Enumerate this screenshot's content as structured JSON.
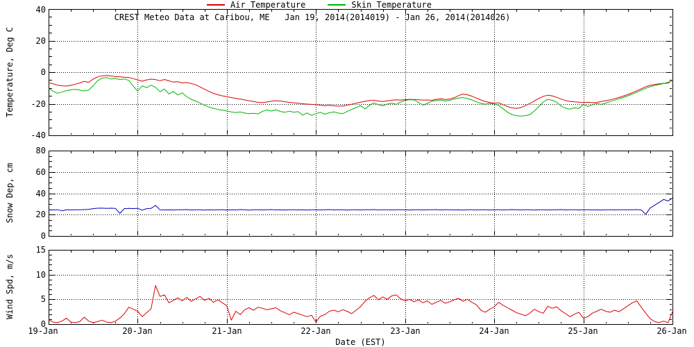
{
  "title": "CREST Meteo Data at Caribou, ME   Jan 19, 2014(2014019) - Jan 26, 2014(2014026)",
  "legend": {
    "air": "Air Temperature",
    "skin": "Skin Temperature"
  },
  "colors": {
    "air": "#dd0000",
    "skin": "#00b300",
    "snow": "#0000bb",
    "wind": "#dd0000",
    "frame": "#000000",
    "background": "#ffffff"
  },
  "xaxis": {
    "label": "Date (EST)",
    "tick_labels": [
      "19-Jan",
      "20-Jan",
      "21-Jan",
      "22-Jan",
      "23-Jan",
      "24-Jan",
      "25-Jan",
      "26-Jan"
    ],
    "xlim_days": [
      19,
      26
    ],
    "minor_tick_day_step": 0.25,
    "grid_days": [
      20,
      21,
      22,
      23,
      24,
      25
    ]
  },
  "chart_data": [
    {
      "type": "line",
      "panel": "temperature",
      "ylabel": "Temperature, Deg C",
      "ylim": [
        -40,
        40
      ],
      "ytick_labels": [
        "40",
        "20",
        "0",
        "-20",
        "-40"
      ],
      "ytick_values": [
        40,
        20,
        0,
        -20,
        -40
      ],
      "y_minor_step": 5,
      "grid_values": [
        20,
        0,
        -20
      ],
      "x_start": 19.0,
      "x_step": 0.05,
      "x_end": 26.0,
      "series": [
        {
          "name": "Air Temperature",
          "color_key": "air",
          "values": [
            -6.8,
            -7.3,
            -8.2,
            -8.6,
            -8.8,
            -8.3,
            -7.6,
            -6.8,
            -5.8,
            -6.4,
            -4.4,
            -3.0,
            -2.3,
            -2.1,
            -2.4,
            -2.8,
            -2.9,
            -3.2,
            -3.4,
            -4.1,
            -4.9,
            -5.7,
            -4.9,
            -4.4,
            -4.7,
            -5.4,
            -4.6,
            -5.5,
            -6.3,
            -6.0,
            -6.8,
            -6.5,
            -7.2,
            -8.0,
            -9.3,
            -10.8,
            -12.2,
            -13.4,
            -14.3,
            -15.0,
            -15.5,
            -16.1,
            -16.6,
            -17.0,
            -17.6,
            -18.1,
            -18.6,
            -19.1,
            -19.3,
            -18.9,
            -18.4,
            -18.1,
            -18.3,
            -18.7,
            -19.1,
            -19.4,
            -19.7,
            -20.0,
            -20.2,
            -20.4,
            -20.6,
            -20.9,
            -21.2,
            -21.0,
            -21.3,
            -21.5,
            -21.4,
            -20.9,
            -20.3,
            -19.6,
            -19.0,
            -18.4,
            -18.0,
            -17.8,
            -18.3,
            -18.6,
            -18.2,
            -17.8,
            -17.5,
            -17.7,
            -17.4,
            -17.2,
            -17.3,
            -17.5,
            -17.7,
            -17.6,
            -17.8,
            -17.2,
            -16.8,
            -17.3,
            -17.0,
            -16.2,
            -14.8,
            -13.9,
            -14.3,
            -15.2,
            -16.4,
            -17.6,
            -18.6,
            -19.2,
            -19.6,
            -19.4,
            -20.6,
            -21.8,
            -22.6,
            -22.9,
            -22.4,
            -21.2,
            -19.8,
            -18.2,
            -16.6,
            -15.3,
            -14.6,
            -15.0,
            -15.9,
            -17.0,
            -17.9,
            -18.5,
            -18.8,
            -19.0,
            -19.2,
            -19.0,
            -19.3,
            -19.1,
            -18.6,
            -18.1,
            -17.5,
            -16.8,
            -16.0,
            -15.1,
            -14.1,
            -13.0,
            -11.8,
            -10.5,
            -9.2,
            -8.3,
            -7.8,
            -7.4,
            -7.1,
            -6.9,
            -5.0
          ]
        },
        {
          "name": "Skin Temperature",
          "color_key": "skin",
          "values": [
            -10.4,
            -12.0,
            -13.3,
            -12.6,
            -11.6,
            -11.2,
            -10.9,
            -11.4,
            -11.9,
            -11.3,
            -8.6,
            -5.4,
            -3.8,
            -3.4,
            -4.3,
            -4.0,
            -4.6,
            -4.3,
            -5.2,
            -8.8,
            -12.0,
            -8.6,
            -9.8,
            -8.2,
            -9.6,
            -12.4,
            -10.7,
            -13.8,
            -12.2,
            -14.4,
            -13.1,
            -15.6,
            -17.2,
            -18.3,
            -19.5,
            -21.0,
            -22.1,
            -22.9,
            -23.6,
            -24.1,
            -24.6,
            -25.2,
            -25.6,
            -25.2,
            -25.9,
            -26.3,
            -26.0,
            -26.4,
            -24.8,
            -23.9,
            -24.6,
            -23.8,
            -24.9,
            -25.4,
            -24.7,
            -25.3,
            -25.0,
            -27.2,
            -25.8,
            -27.4,
            -26.2,
            -25.4,
            -26.6,
            -25.7,
            -25.2,
            -25.9,
            -26.3,
            -24.9,
            -23.6,
            -22.4,
            -21.2,
            -23.3,
            -21.0,
            -19.4,
            -20.6,
            -21.3,
            -20.2,
            -19.6,
            -20.4,
            -19.0,
            -17.9,
            -17.4,
            -17.6,
            -19.2,
            -20.9,
            -19.8,
            -18.4,
            -18.0,
            -17.6,
            -18.3,
            -17.8,
            -17.0,
            -16.4,
            -16.1,
            -16.7,
            -17.6,
            -18.8,
            -19.8,
            -20.3,
            -19.7,
            -20.2,
            -21.0,
            -23.2,
            -25.4,
            -26.8,
            -27.6,
            -27.8,
            -27.5,
            -26.9,
            -24.6,
            -21.8,
            -18.9,
            -17.2,
            -17.8,
            -19.0,
            -21.4,
            -22.8,
            -23.4,
            -22.6,
            -23.0,
            -20.4,
            -21.8,
            -20.6,
            -19.8,
            -20.4,
            -19.6,
            -18.6,
            -17.7,
            -16.9,
            -16.0,
            -15.0,
            -13.9,
            -12.6,
            -11.4,
            -10.2,
            -9.2,
            -8.4,
            -7.8,
            -7.2,
            -6.4,
            -5.2
          ]
        }
      ]
    },
    {
      "type": "line",
      "panel": "snow-depth",
      "ylabel": "Snow Dep, cm",
      "ylim": [
        0,
        80
      ],
      "ytick_labels": [
        "80",
        "60",
        "40",
        "20",
        "0"
      ],
      "ytick_values": [
        80,
        60,
        40,
        20,
        0
      ],
      "y_minor_step": 5,
      "grid_values": [
        60,
        40,
        20
      ],
      "x_start": 19.0,
      "x_step": 0.05,
      "x_end": 26.0,
      "series": [
        {
          "color_key": "snow",
          "values": [
            24.5,
            24.4,
            24.6,
            23.6,
            24.5,
            24.4,
            24.6,
            24.5,
            24.7,
            25.0,
            25.6,
            26.0,
            26.1,
            25.9,
            26.0,
            25.8,
            21.2,
            25.6,
            25.9,
            25.7,
            25.9,
            24.2,
            25.6,
            25.9,
            28.6,
            24.5,
            24.4,
            24.6,
            24.3,
            24.6,
            24.5,
            24.7,
            24.3,
            24.5,
            24.6,
            24.2,
            24.5,
            24.4,
            24.6,
            24.5,
            24.3,
            24.6,
            24.4,
            24.7,
            24.5,
            24.2,
            24.5,
            24.6,
            24.4,
            24.5,
            24.7,
            24.4,
            24.5,
            24.3,
            24.6,
            24.5,
            24.4,
            24.6,
            24.3,
            24.5,
            24.6,
            24.4,
            24.5,
            24.7,
            24.4,
            24.6,
            24.5,
            24.3,
            24.6,
            24.5,
            24.4,
            24.6,
            24.5,
            24.7,
            24.4,
            24.5,
            24.6,
            24.4,
            24.5,
            24.6,
            24.5,
            24.3,
            24.6,
            24.5,
            24.4,
            24.6,
            24.5,
            24.7,
            24.4,
            24.5,
            24.6,
            24.4,
            24.5,
            24.3,
            24.6,
            24.5,
            24.4,
            24.6,
            24.5,
            24.3,
            24.5,
            24.6,
            24.4,
            24.5,
            24.7,
            24.5,
            24.4,
            24.6,
            24.5,
            24.3,
            24.6,
            24.5,
            24.4,
            24.6,
            24.5,
            24.7,
            24.4,
            24.5,
            24.6,
            24.4,
            24.5,
            24.6,
            24.4,
            24.5,
            24.3,
            24.6,
            24.5,
            24.4,
            24.6,
            24.5,
            24.6,
            24.5,
            24.7,
            24.4,
            20.3,
            26.2,
            28.8,
            31.4,
            34.2,
            32.8,
            35.6
          ]
        }
      ]
    },
    {
      "type": "line",
      "panel": "wind-speed",
      "ylabel": "Wind Spd, m/s",
      "ylim": [
        0,
        15
      ],
      "ytick_labels": [
        "15",
        "10",
        "5",
        "0"
      ],
      "ytick_values": [
        15,
        10,
        5,
        0
      ],
      "y_minor_step": 1,
      "grid_values": [
        10,
        5
      ],
      "x_start": 19.0,
      "x_step": 0.05,
      "x_end": 26.0,
      "series": [
        {
          "color_key": "wind",
          "values": [
            0.9,
            0.4,
            0.3,
            0.6,
            1.2,
            0.4,
            0.3,
            0.5,
            1.4,
            0.6,
            0.3,
            0.5,
            0.8,
            0.4,
            0.3,
            0.6,
            1.2,
            2.1,
            3.4,
            3.0,
            2.6,
            1.5,
            2.3,
            3.1,
            7.8,
            5.6,
            5.9,
            4.3,
            4.8,
            5.3,
            4.7,
            5.4,
            4.6,
            5.1,
            5.6,
            4.8,
            5.2,
            4.4,
            4.9,
            4.3,
            3.7,
            0.8,
            2.6,
            1.9,
            2.9,
            3.3,
            2.8,
            3.4,
            3.2,
            2.9,
            3.1,
            3.3,
            2.7,
            2.3,
            1.9,
            2.4,
            2.1,
            1.8,
            1.5,
            1.8,
            0.4,
            1.6,
            1.9,
            2.6,
            2.8,
            2.5,
            2.9,
            2.6,
            2.1,
            2.8,
            3.5,
            4.6,
            5.3,
            5.8,
            4.9,
            5.5,
            5.0,
            5.7,
            5.9,
            5.1,
            4.7,
            5.0,
            4.5,
            4.9,
            4.3,
            4.7,
            4.0,
            4.4,
            4.8,
            4.2,
            4.5,
            4.9,
            5.2,
            4.6,
            5.0,
            4.4,
            3.9,
            2.8,
            2.4,
            3.0,
            3.5,
            4.4,
            3.8,
            3.3,
            2.8,
            2.3,
            2.0,
            1.7,
            2.2,
            3.0,
            2.5,
            2.2,
            3.6,
            3.2,
            3.5,
            2.7,
            2.1,
            1.5,
            2.0,
            2.4,
            1.2,
            1.5,
            2.2,
            2.6,
            3.0,
            2.6,
            2.4,
            2.8,
            2.5,
            3.1,
            3.7,
            4.3,
            4.7,
            3.4,
            2.2,
            1.1,
            0.5,
            0.3,
            0.6,
            0.3,
            2.5
          ]
        }
      ]
    }
  ]
}
